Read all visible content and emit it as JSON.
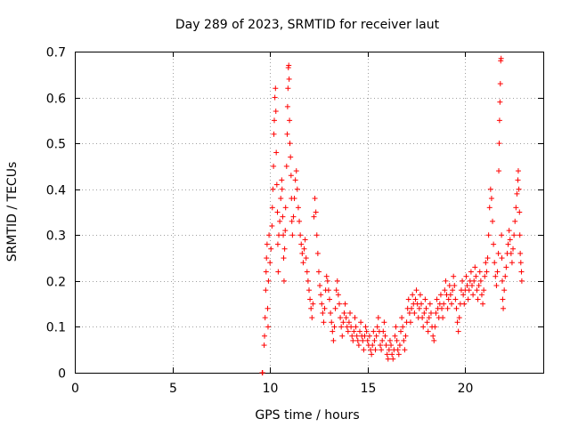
{
  "chart_data": {
    "type": "scatter",
    "title": "Day 289 of 2023, SRMTID for receiver laut",
    "xlabel": "GPS time / hours",
    "ylabel": "SRMTID / TECUs",
    "xlim": [
      0,
      24
    ],
    "ylim": [
      0,
      0.7
    ],
    "xticks": [
      0,
      5,
      10,
      15,
      20
    ],
    "xtick_labels": [
      "0",
      "5",
      "10",
      "15",
      "20"
    ],
    "yticks": [
      0,
      0.1,
      0.2,
      0.3,
      0.4,
      0.5,
      0.6,
      0.7
    ],
    "ytick_labels": [
      "0",
      "0.1",
      "0.2",
      "0.3",
      "0.4",
      "0.5",
      "0.6",
      "0.7"
    ],
    "grid": true,
    "marker": "+",
    "color": "#ff0000",
    "series": [
      {
        "name": "SRMTID",
        "points": [
          [
            9.6,
            0.0
          ],
          [
            9.62,
            0.0
          ],
          [
            9.7,
            0.06
          ],
          [
            9.72,
            0.08
          ],
          [
            9.75,
            0.12
          ],
          [
            9.78,
            0.18
          ],
          [
            9.8,
            0.22
          ],
          [
            9.82,
            0.25
          ],
          [
            9.85,
            0.28
          ],
          [
            9.88,
            0.14
          ],
          [
            9.9,
            0.1
          ],
          [
            9.92,
            0.2
          ],
          [
            9.95,
            0.3
          ],
          [
            10.0,
            0.24
          ],
          [
            10.05,
            0.27
          ],
          [
            10.1,
            0.32
          ],
          [
            10.12,
            0.36
          ],
          [
            10.15,
            0.4
          ],
          [
            10.18,
            0.45
          ],
          [
            10.2,
            0.52
          ],
          [
            10.22,
            0.55
          ],
          [
            10.25,
            0.6
          ],
          [
            10.28,
            0.62
          ],
          [
            10.3,
            0.57
          ],
          [
            10.32,
            0.48
          ],
          [
            10.35,
            0.41
          ],
          [
            10.38,
            0.35
          ],
          [
            10.4,
            0.28
          ],
          [
            10.42,
            0.22
          ],
          [
            10.45,
            0.3
          ],
          [
            10.5,
            0.33
          ],
          [
            10.55,
            0.38
          ],
          [
            10.6,
            0.42
          ],
          [
            10.62,
            0.4
          ],
          [
            10.65,
            0.34
          ],
          [
            10.68,
            0.3
          ],
          [
            10.7,
            0.25
          ],
          [
            10.72,
            0.2
          ],
          [
            10.75,
            0.27
          ],
          [
            10.78,
            0.31
          ],
          [
            10.8,
            0.36
          ],
          [
            10.85,
            0.45
          ],
          [
            10.88,
            0.52
          ],
          [
            10.9,
            0.58
          ],
          [
            10.92,
            0.62
          ],
          [
            10.94,
            0.665
          ],
          [
            10.96,
            0.67
          ],
          [
            10.98,
            0.64
          ],
          [
            11.0,
            0.55
          ],
          [
            11.02,
            0.5
          ],
          [
            11.05,
            0.47
          ],
          [
            11.08,
            0.43
          ],
          [
            11.1,
            0.38
          ],
          [
            11.12,
            0.33
          ],
          [
            11.15,
            0.3
          ],
          [
            11.2,
            0.34
          ],
          [
            11.25,
            0.38
          ],
          [
            11.3,
            0.42
          ],
          [
            11.35,
            0.44
          ],
          [
            11.4,
            0.4
          ],
          [
            11.45,
            0.36
          ],
          [
            11.5,
            0.33
          ],
          [
            11.55,
            0.3
          ],
          [
            11.6,
            0.28
          ],
          [
            11.65,
            0.26
          ],
          [
            11.7,
            0.24
          ],
          [
            11.75,
            0.27
          ],
          [
            11.8,
            0.29
          ],
          [
            11.85,
            0.25
          ],
          [
            11.9,
            0.22
          ],
          [
            11.95,
            0.2
          ],
          [
            12.0,
            0.18
          ],
          [
            12.05,
            0.16
          ],
          [
            12.1,
            0.14
          ],
          [
            12.15,
            0.12
          ],
          [
            12.2,
            0.15
          ],
          [
            12.25,
            0.34
          ],
          [
            12.3,
            0.38
          ],
          [
            12.35,
            0.35
          ],
          [
            12.4,
            0.3
          ],
          [
            12.45,
            0.26
          ],
          [
            12.5,
            0.22
          ],
          [
            12.55,
            0.19
          ],
          [
            12.6,
            0.17
          ],
          [
            12.65,
            0.15
          ],
          [
            12.7,
            0.13
          ],
          [
            12.75,
            0.11
          ],
          [
            12.8,
            0.14
          ],
          [
            12.85,
            0.18
          ],
          [
            12.9,
            0.21
          ],
          [
            12.95,
            0.2
          ],
          [
            13.0,
            0.18
          ],
          [
            13.05,
            0.16
          ],
          [
            13.1,
            0.13
          ],
          [
            13.15,
            0.11
          ],
          [
            13.2,
            0.09
          ],
          [
            13.25,
            0.07
          ],
          [
            13.3,
            0.1
          ],
          [
            13.35,
            0.14
          ],
          [
            13.4,
            0.18
          ],
          [
            13.45,
            0.2
          ],
          [
            13.5,
            0.17
          ],
          [
            13.55,
            0.15
          ],
          [
            13.6,
            0.12
          ],
          [
            13.65,
            0.1
          ],
          [
            13.7,
            0.08
          ],
          [
            13.75,
            0.11
          ],
          [
            13.8,
            0.13
          ],
          [
            13.85,
            0.15
          ],
          [
            13.9,
            0.12
          ],
          [
            13.95,
            0.1
          ],
          [
            14.0,
            0.09
          ],
          [
            14.05,
            0.11
          ],
          [
            14.1,
            0.13
          ],
          [
            14.15,
            0.1
          ],
          [
            14.2,
            0.08
          ],
          [
            14.25,
            0.07
          ],
          [
            14.3,
            0.09
          ],
          [
            14.35,
            0.12
          ],
          [
            14.4,
            0.1
          ],
          [
            14.45,
            0.08
          ],
          [
            14.5,
            0.07
          ],
          [
            14.55,
            0.06
          ],
          [
            14.6,
            0.09
          ],
          [
            14.65,
            0.11
          ],
          [
            14.7,
            0.08
          ],
          [
            14.75,
            0.07
          ],
          [
            14.8,
            0.05
          ],
          [
            14.85,
            0.08
          ],
          [
            14.9,
            0.1
          ],
          [
            14.95,
            0.09
          ],
          [
            15.0,
            0.07
          ],
          [
            15.05,
            0.06
          ],
          [
            15.1,
            0.08
          ],
          [
            15.15,
            0.05
          ],
          [
            15.2,
            0.04
          ],
          [
            15.25,
            0.06
          ],
          [
            15.3,
            0.09
          ],
          [
            15.35,
            0.07
          ],
          [
            15.4,
            0.05
          ],
          [
            15.45,
            0.08
          ],
          [
            15.5,
            0.1
          ],
          [
            15.55,
            0.12
          ],
          [
            15.6,
            0.09
          ],
          [
            15.65,
            0.06
          ],
          [
            15.7,
            0.05
          ],
          [
            15.75,
            0.07
          ],
          [
            15.8,
            0.09
          ],
          [
            15.85,
            0.11
          ],
          [
            15.9,
            0.08
          ],
          [
            15.95,
            0.06
          ],
          [
            16.0,
            0.04
          ],
          [
            16.05,
            0.03
          ],
          [
            16.1,
            0.05
          ],
          [
            16.15,
            0.07
          ],
          [
            16.2,
            0.06
          ],
          [
            16.25,
            0.04
          ],
          [
            16.3,
            0.03
          ],
          [
            16.35,
            0.05
          ],
          [
            16.4,
            0.08
          ],
          [
            16.45,
            0.1
          ],
          [
            16.5,
            0.07
          ],
          [
            16.55,
            0.05
          ],
          [
            16.6,
            0.04
          ],
          [
            16.65,
            0.06
          ],
          [
            16.7,
            0.09
          ],
          [
            16.75,
            0.12
          ],
          [
            16.8,
            0.1
          ],
          [
            16.85,
            0.07
          ],
          [
            16.9,
            0.05
          ],
          [
            16.95,
            0.08
          ],
          [
            17.0,
            0.11
          ],
          [
            17.05,
            0.14
          ],
          [
            17.1,
            0.16
          ],
          [
            17.15,
            0.13
          ],
          [
            17.2,
            0.11
          ],
          [
            17.25,
            0.14
          ],
          [
            17.3,
            0.17
          ],
          [
            17.35,
            0.15
          ],
          [
            17.4,
            0.13
          ],
          [
            17.45,
            0.16
          ],
          [
            17.5,
            0.18
          ],
          [
            17.55,
            0.15
          ],
          [
            17.6,
            0.12
          ],
          [
            17.65,
            0.14
          ],
          [
            17.7,
            0.17
          ],
          [
            17.75,
            0.15
          ],
          [
            17.8,
            0.12
          ],
          [
            17.85,
            0.1
          ],
          [
            17.9,
            0.13
          ],
          [
            17.95,
            0.16
          ],
          [
            18.0,
            0.14
          ],
          [
            18.05,
            0.11
          ],
          [
            18.1,
            0.09
          ],
          [
            18.15,
            0.12
          ],
          [
            18.2,
            0.15
          ],
          [
            18.25,
            0.13
          ],
          [
            18.3,
            0.1
          ],
          [
            18.35,
            0.08
          ],
          [
            18.4,
            0.07
          ],
          [
            18.45,
            0.1
          ],
          [
            18.5,
            0.13
          ],
          [
            18.55,
            0.16
          ],
          [
            18.6,
            0.14
          ],
          [
            18.65,
            0.12
          ],
          [
            18.7,
            0.15
          ],
          [
            18.75,
            0.17
          ],
          [
            18.8,
            0.14
          ],
          [
            18.85,
            0.12
          ],
          [
            18.9,
            0.15
          ],
          [
            18.95,
            0.18
          ],
          [
            19.0,
            0.2
          ],
          [
            19.05,
            0.17
          ],
          [
            19.1,
            0.14
          ],
          [
            19.15,
            0.16
          ],
          [
            19.2,
            0.19
          ],
          [
            19.25,
            0.17
          ],
          [
            19.3,
            0.15
          ],
          [
            19.35,
            0.18
          ],
          [
            19.4,
            0.21
          ],
          [
            19.45,
            0.19
          ],
          [
            19.5,
            0.16
          ],
          [
            19.55,
            0.14
          ],
          [
            19.6,
            0.11
          ],
          [
            19.65,
            0.09
          ],
          [
            19.7,
            0.12
          ],
          [
            19.75,
            0.15
          ],
          [
            19.8,
            0.18
          ],
          [
            19.85,
            0.2
          ],
          [
            19.9,
            0.17
          ],
          [
            19.95,
            0.15
          ],
          [
            20.0,
            0.18
          ],
          [
            20.05,
            0.21
          ],
          [
            20.1,
            0.19
          ],
          [
            20.15,
            0.16
          ],
          [
            20.2,
            0.18
          ],
          [
            20.25,
            0.2
          ],
          [
            20.3,
            0.22
          ],
          [
            20.35,
            0.19
          ],
          [
            20.4,
            0.17
          ],
          [
            20.45,
            0.2
          ],
          [
            20.5,
            0.23
          ],
          [
            20.55,
            0.21
          ],
          [
            20.6,
            0.18
          ],
          [
            20.65,
            0.16
          ],
          [
            20.7,
            0.19
          ],
          [
            20.75,
            0.22
          ],
          [
            20.8,
            0.2
          ],
          [
            20.85,
            0.17
          ],
          [
            20.9,
            0.15
          ],
          [
            20.95,
            0.18
          ],
          [
            21.0,
            0.21
          ],
          [
            21.05,
            0.24
          ],
          [
            21.1,
            0.22
          ],
          [
            21.15,
            0.25
          ],
          [
            21.2,
            0.3
          ],
          [
            21.25,
            0.36
          ],
          [
            21.3,
            0.4
          ],
          [
            21.35,
            0.38
          ],
          [
            21.4,
            0.33
          ],
          [
            21.45,
            0.28
          ],
          [
            21.5,
            0.24
          ],
          [
            21.55,
            0.21
          ],
          [
            21.6,
            0.19
          ],
          [
            21.65,
            0.22
          ],
          [
            21.7,
            0.26
          ],
          [
            21.72,
            0.44
          ],
          [
            21.74,
            0.5
          ],
          [
            21.76,
            0.55
          ],
          [
            21.78,
            0.59
          ],
          [
            21.8,
            0.63
          ],
          [
            21.82,
            0.68
          ],
          [
            21.84,
            0.685
          ],
          [
            21.86,
            0.3
          ],
          [
            21.88,
            0.25
          ],
          [
            21.9,
            0.2
          ],
          [
            21.92,
            0.16
          ],
          [
            21.95,
            0.14
          ],
          [
            22.0,
            0.18
          ],
          [
            22.05,
            0.21
          ],
          [
            22.1,
            0.23
          ],
          [
            22.15,
            0.26
          ],
          [
            22.2,
            0.28
          ],
          [
            22.25,
            0.31
          ],
          [
            22.3,
            0.29
          ],
          [
            22.35,
            0.26
          ],
          [
            22.4,
            0.24
          ],
          [
            22.45,
            0.27
          ],
          [
            22.5,
            0.3
          ],
          [
            22.55,
            0.33
          ],
          [
            22.6,
            0.36
          ],
          [
            22.65,
            0.39
          ],
          [
            22.7,
            0.42
          ],
          [
            22.72,
            0.44
          ],
          [
            22.75,
            0.4
          ],
          [
            22.78,
            0.35
          ],
          [
            22.8,
            0.3
          ],
          [
            22.82,
            0.26
          ],
          [
            22.85,
            0.24
          ],
          [
            22.88,
            0.22
          ],
          [
            22.9,
            0.2
          ]
        ]
      }
    ]
  }
}
